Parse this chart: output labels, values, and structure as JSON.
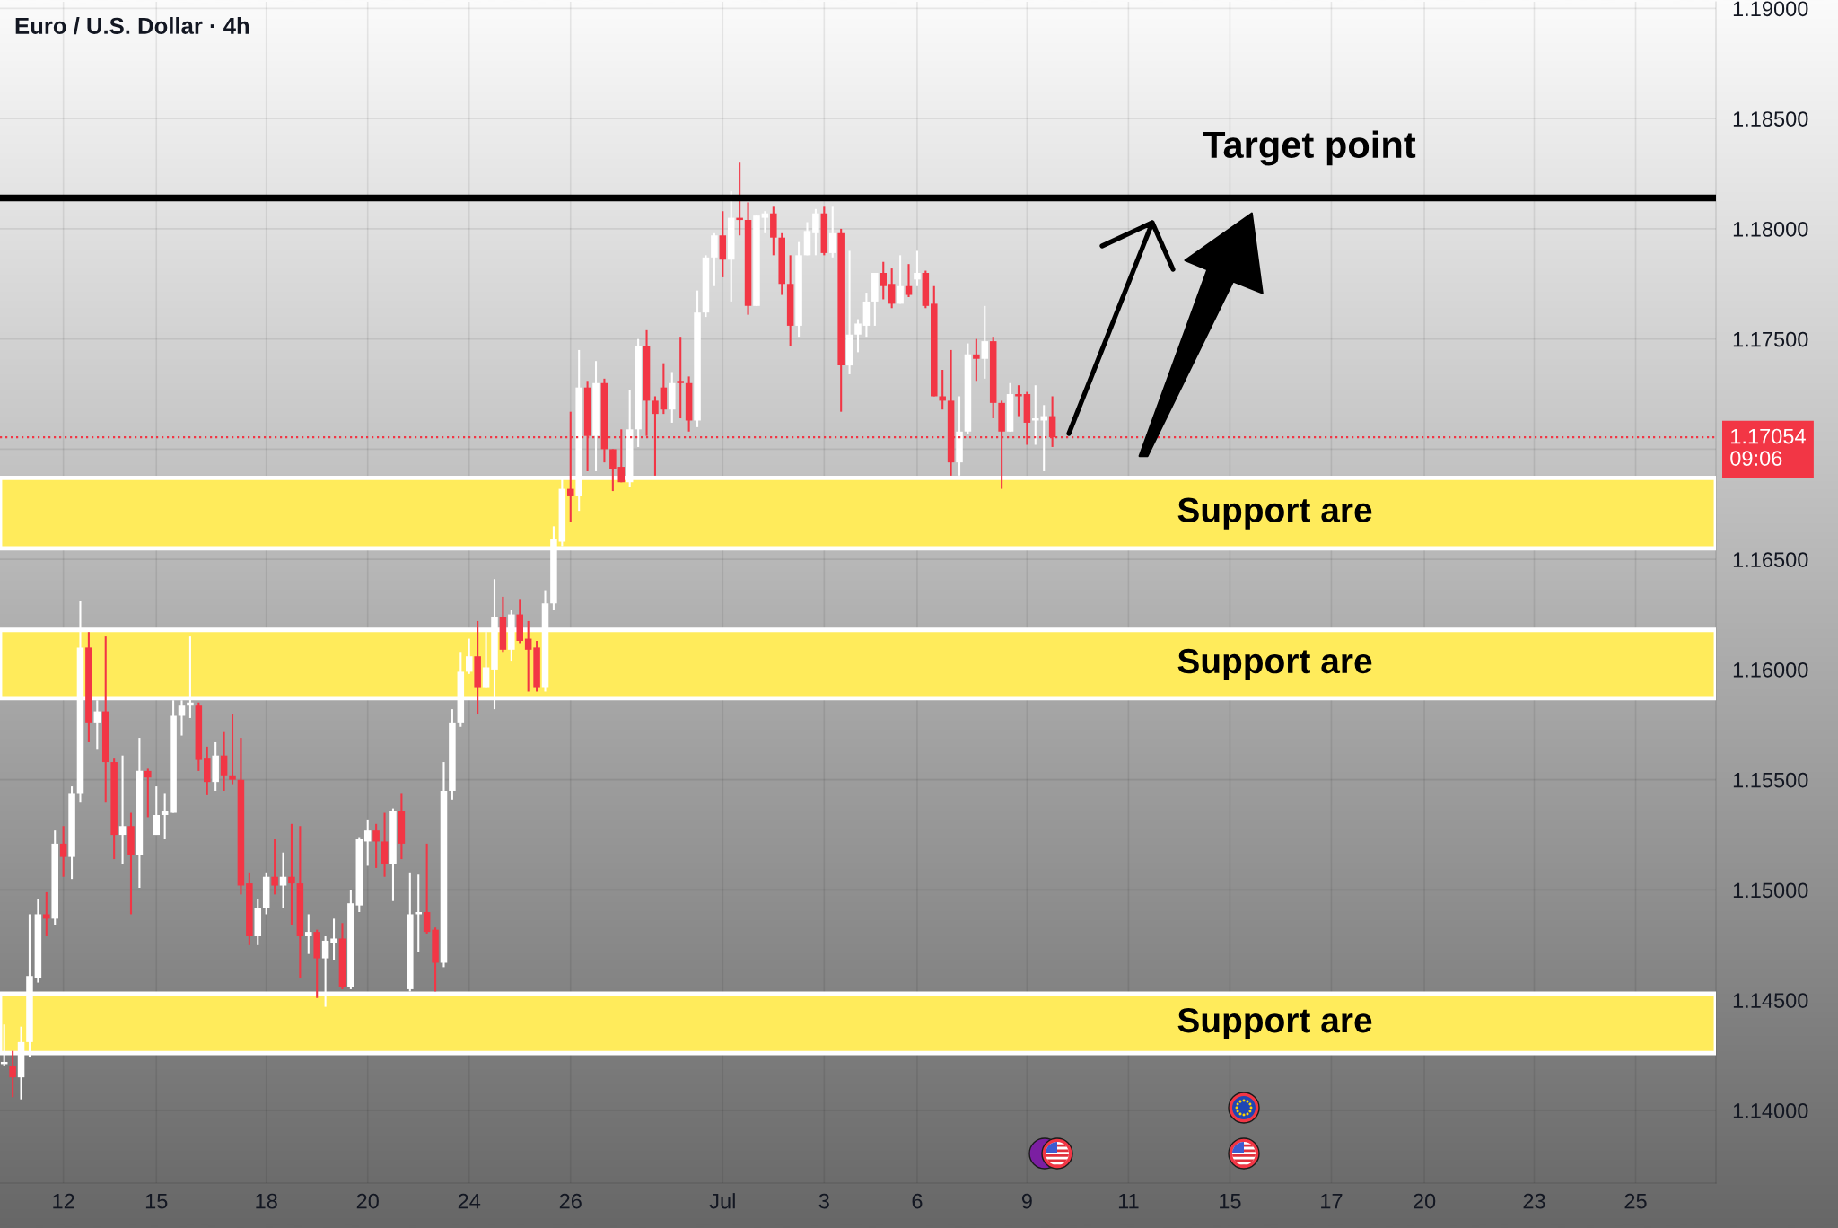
{
  "chart_data": {
    "type": "candlestick",
    "title": "Euro / U.S. Dollar · 4h",
    "categories": [
      null,
      null,
      null,
      null,
      null,
      null,
      null,
      "12",
      null,
      null,
      null,
      null,
      null,
      null,
      null,
      null,
      null,
      null,
      "15",
      null,
      null,
      null,
      null,
      null,
      null,
      null,
      null,
      null,
      null,
      null,
      null,
      "18",
      null,
      null,
      null,
      null,
      null,
      null,
      null,
      null,
      null,
      null,
      null,
      "20",
      null,
      null,
      null,
      null,
      null,
      null,
      null,
      null,
      null,
      null,
      null,
      "24",
      null,
      null,
      null,
      null,
      null,
      null,
      null,
      null,
      null,
      null,
      null,
      "26",
      null,
      null,
      null,
      null,
      null,
      null,
      null,
      null,
      null,
      null,
      null,
      null,
      null,
      null,
      null,
      null,
      null,
      "Jul",
      null,
      null,
      null,
      null,
      null,
      null,
      null,
      null,
      null,
      null,
      null,
      "3",
      null,
      null,
      null,
      null,
      null,
      null,
      null,
      null,
      null,
      null,
      "6",
      null,
      null,
      null,
      null,
      null,
      null,
      null,
      null,
      null,
      null,
      null,
      null,
      "9",
      null,
      null,
      null,
      null,
      null,
      null,
      null,
      null,
      null,
      null,
      null,
      "11",
      null,
      null,
      null,
      null,
      null,
      null,
      null,
      null,
      null,
      null,
      null,
      "15",
      null,
      null,
      null,
      null,
      null,
      null,
      null,
      null,
      null,
      null,
      null,
      "17",
      null,
      null,
      null,
      null,
      null,
      null,
      null,
      null,
      null,
      null,
      "20",
      null,
      null,
      null,
      null,
      null,
      null,
      null,
      null,
      null,
      null,
      null,
      null,
      "23",
      null,
      null,
      null,
      null,
      null,
      null,
      null,
      null,
      null,
      null,
      null,
      "25",
      null,
      null,
      null,
      null,
      null,
      null,
      null,
      null,
      null
    ],
    "ohlc": [
      [
        1.1421,
        1.1439,
        1.142,
        1.1422
      ],
      [
        1.142,
        1.1427,
        1.1406,
        1.1415
      ],
      [
        1.1415,
        1.1438,
        1.1405,
        1.1431
      ],
      [
        1.1431,
        1.1489,
        1.1424,
        1.1461
      ],
      [
        1.146,
        1.1496,
        1.1458,
        1.1489
      ],
      [
        1.1489,
        1.1499,
        1.1479,
        1.1487
      ],
      [
        1.1487,
        1.1527,
        1.1484,
        1.1521
      ],
      [
        1.1521,
        1.1529,
        1.1506,
        1.1515
      ],
      [
        1.1515,
        1.1547,
        1.1505,
        1.1544
      ],
      [
        1.1544,
        1.1631,
        1.154,
        1.161
      ],
      [
        1.161,
        1.1617,
        1.1567,
        1.1576
      ],
      [
        1.1576,
        1.1586,
        1.1564,
        1.1581
      ],
      [
        1.1581,
        1.1615,
        1.154,
        1.1558
      ],
      [
        1.1558,
        1.156,
        1.1514,
        1.1525
      ],
      [
        1.1525,
        1.1561,
        1.1512,
        1.1529
      ],
      [
        1.1529,
        1.1535,
        1.1489,
        1.1516
      ],
      [
        1.1516,
        1.1569,
        1.1501,
        1.1554
      ],
      [
        1.1554,
        1.1555,
        1.1533,
        1.1551
      ],
      [
        1.1525,
        1.1547,
        1.1525,
        1.1534
      ],
      [
        1.1534,
        1.1544,
        1.1523,
        1.1536
      ],
      [
        1.1535,
        1.1586,
        1.1535,
        1.1579
      ],
      [
        1.1579,
        1.1586,
        1.157,
        1.1584
      ],
      [
        1.1584,
        1.1615,
        1.1578,
        1.1585
      ],
      [
        1.1584,
        1.1585,
        1.1554,
        1.1559
      ],
      [
        1.156,
        1.1565,
        1.1543,
        1.1549
      ],
      [
        1.1549,
        1.1567,
        1.1545,
        1.1561
      ],
      [
        1.1561,
        1.1572,
        1.1545,
        1.1552
      ],
      [
        1.1552,
        1.158,
        1.1548,
        1.155
      ],
      [
        1.155,
        1.1569,
        1.1498,
        1.1502
      ],
      [
        1.1503,
        1.1508,
        1.1475,
        1.1479
      ],
      [
        1.1479,
        1.1496,
        1.1475,
        1.1492
      ],
      [
        1.1492,
        1.1508,
        1.1489,
        1.1506
      ],
      [
        1.1506,
        1.1523,
        1.1498,
        1.1502
      ],
      [
        1.1502,
        1.1517,
        1.1492,
        1.1506
      ],
      [
        1.1506,
        1.153,
        1.1484,
        1.1503
      ],
      [
        1.1503,
        1.1529,
        1.146,
        1.1479
      ],
      [
        1.1479,
        1.1489,
        1.1471,
        1.1481
      ],
      [
        1.1481,
        1.1482,
        1.1451,
        1.1469
      ],
      [
        1.1469,
        1.1479,
        1.1447,
        1.1477
      ],
      [
        1.1476,
        1.1487,
        1.1468,
        1.1478
      ],
      [
        1.1478,
        1.1485,
        1.1455,
        1.1456
      ],
      [
        1.1456,
        1.15,
        1.1455,
        1.1494
      ],
      [
        1.1493,
        1.1524,
        1.149,
        1.1523
      ],
      [
        1.1522,
        1.1532,
        1.1511,
        1.1527
      ],
      [
        1.1527,
        1.153,
        1.151,
        1.1522
      ],
      [
        1.1522,
        1.1535,
        1.1506,
        1.1512
      ],
      [
        1.1512,
        1.1537,
        1.1495,
        1.1536
      ],
      [
        1.1536,
        1.1544,
        1.1514,
        1.1521
      ],
      [
        1.1455,
        1.1508,
        1.1454,
        1.1489
      ],
      [
        1.1489,
        1.1507,
        1.1472,
        1.149
      ],
      [
        1.149,
        1.1521,
        1.148,
        1.1481
      ],
      [
        1.1482,
        1.1483,
        1.1454,
        1.1467
      ],
      [
        1.1467,
        1.1558,
        1.1465,
        1.1545
      ],
      [
        1.1545,
        1.1582,
        1.1541,
        1.1576
      ],
      [
        1.1576,
        1.1608,
        1.1574,
        1.1599
      ],
      [
        1.1599,
        1.1614,
        1.1598,
        1.1606
      ],
      [
        1.1606,
        1.1622,
        1.158,
        1.1592
      ],
      [
        1.1592,
        1.1617,
        1.1592,
        1.1601
      ],
      [
        1.16,
        1.1641,
        1.1582,
        1.1624
      ],
      [
        1.1624,
        1.1633,
        1.1608,
        1.1609
      ],
      [
        1.1609,
        1.1627,
        1.1604,
        1.1625
      ],
      [
        1.1625,
        1.1632,
        1.1612,
        1.1613
      ],
      [
        1.1614,
        1.1622,
        1.159,
        1.1609
      ],
      [
        1.161,
        1.1613,
        1.159,
        1.1592
      ],
      [
        1.1592,
        1.1636,
        1.159,
        1.163
      ],
      [
        1.163,
        1.1665,
        1.1627,
        1.1659
      ],
      [
        1.1658,
        1.1687,
        1.1656,
        1.1682
      ],
      [
        1.1682,
        1.1717,
        1.1667,
        1.1679
      ],
      [
        1.1679,
        1.1745,
        1.1672,
        1.1728
      ],
      [
        1.1728,
        1.1731,
        1.169,
        1.1706
      ],
      [
        1.1706,
        1.174,
        1.169,
        1.173
      ],
      [
        1.173,
        1.1732,
        1.1694,
        1.17
      ],
      [
        1.17,
        1.17,
        1.1681,
        1.1691
      ],
      [
        1.1692,
        1.1709,
        1.1685,
        1.1685
      ],
      [
        1.1685,
        1.1727,
        1.1683,
        1.1709
      ],
      [
        1.1709,
        1.175,
        1.1701,
        1.1747
      ],
      [
        1.1747,
        1.1754,
        1.1706,
        1.1722
      ],
      [
        1.1722,
        1.1724,
        1.1688,
        1.1716
      ],
      [
        1.1728,
        1.1739,
        1.1716,
        1.1718
      ],
      [
        1.1718,
        1.1735,
        1.1712,
        1.173
      ],
      [
        1.1731,
        1.1751,
        1.1714,
        1.173
      ],
      [
        1.173,
        1.1733,
        1.1708,
        1.1713
      ],
      [
        1.1713,
        1.1772,
        1.171,
        1.1762
      ],
      [
        1.1762,
        1.1788,
        1.176,
        1.1787
      ],
      [
        1.1787,
        1.1798,
        1.1774,
        1.1797
      ],
      [
        1.1797,
        1.1808,
        1.1778,
        1.1786
      ],
      [
        1.1786,
        1.1817,
        1.1767,
        1.1805
      ],
      [
        1.1805,
        1.183,
        1.1797,
        1.1804
      ],
      [
        1.1804,
        1.1812,
        1.1761,
        1.1765
      ],
      [
        1.1765,
        1.1806,
        1.1765,
        1.1806
      ],
      [
        1.1805,
        1.1808,
        1.1798,
        1.1807
      ],
      [
        1.1807,
        1.181,
        1.1788,
        1.1796
      ],
      [
        1.1796,
        1.1798,
        1.177,
        1.1775
      ],
      [
        1.1775,
        1.1788,
        1.1747,
        1.1756
      ],
      [
        1.1756,
        1.1794,
        1.1751,
        1.1788
      ],
      [
        1.1788,
        1.1803,
        1.1788,
        1.1799
      ],
      [
        1.1798,
        1.1809,
        1.1788,
        1.1807
      ],
      [
        1.1807,
        1.181,
        1.1788,
        1.1789
      ],
      [
        1.1789,
        1.181,
        1.1787,
        1.1798
      ],
      [
        1.1798,
        1.18,
        1.1717,
        1.1738
      ],
      [
        1.1738,
        1.179,
        1.1734,
        1.1752
      ],
      [
        1.1752,
        1.1759,
        1.1744,
        1.1757
      ],
      [
        1.1756,
        1.1771,
        1.1751,
        1.1767
      ],
      [
        1.1767,
        1.178,
        1.1756,
        1.178
      ],
      [
        1.178,
        1.1785,
        1.1768,
        1.1774
      ],
      [
        1.1775,
        1.1782,
        1.1764,
        1.1766
      ],
      [
        1.1766,
        1.1788,
        1.1766,
        1.1774
      ],
      [
        1.1774,
        1.1784,
        1.1769,
        1.177
      ],
      [
        1.1777,
        1.179,
        1.1774,
        1.178
      ],
      [
        1.178,
        1.1781,
        1.1764,
        1.1765
      ],
      [
        1.1766,
        1.1774,
        1.1724,
        1.1724
      ],
      [
        1.1724,
        1.1736,
        1.1718,
        1.1722
      ],
      [
        1.1722,
        1.1745,
        1.1688,
        1.1694
      ],
      [
        1.1694,
        1.1724,
        1.1688,
        1.1708
      ],
      [
        1.1708,
        1.1748,
        1.1707,
        1.1743
      ],
      [
        1.1743,
        1.175,
        1.1731,
        1.1741
      ],
      [
        1.1741,
        1.1765,
        1.1732,
        1.1749
      ],
      [
        1.1749,
        1.1751,
        1.1714,
        1.1721
      ],
      [
        1.1721,
        1.1722,
        1.1682,
        1.1708
      ],
      [
        1.1708,
        1.173,
        1.1708,
        1.1725
      ],
      [
        1.1725,
        1.1729,
        1.1715,
        1.1724
      ],
      [
        1.1725,
        1.1726,
        1.1702,
        1.1712
      ],
      [
        1.1713,
        1.1729,
        1.1702,
        1.1714
      ],
      [
        1.1713,
        1.172,
        1.169,
        1.1715
      ],
      [
        1.1715,
        1.1724,
        1.1701,
        1.17054
      ],
      null,
      null,
      null,
      null,
      null,
      null,
      null,
      null,
      null,
      null,
      null,
      null,
      null,
      null,
      null,
      null,
      null,
      null,
      null,
      null,
      null,
      null,
      null,
      null,
      null,
      null,
      null,
      null,
      null,
      null,
      null,
      null,
      null,
      null,
      null,
      null,
      null,
      null,
      null,
      null,
      null,
      null,
      null,
      null,
      null,
      null,
      null,
      null,
      null,
      null,
      null,
      null,
      null,
      null,
      null,
      null,
      null,
      null,
      null,
      null,
      null,
      null,
      null,
      null,
      null,
      null,
      null,
      null,
      null,
      null,
      null,
      null,
      null,
      null,
      null,
      null,
      null,
      null
    ],
    "colors": [
      "#ffffff",
      "#f23645",
      "#ffffff",
      "#ffffff",
      "#ffffff",
      "#f23645",
      "#ffffff",
      "#f23645",
      "#ffffff",
      "#ffffff",
      "#f23645",
      "#ffffff",
      "#f23645",
      "#f23645",
      "#ffffff",
      "#f23645",
      "#ffffff",
      "#f23645",
      "#ffffff",
      "#ffffff",
      "#ffffff",
      "#ffffff",
      "#ffffff",
      "#f23645",
      "#f23645",
      "#ffffff",
      "#f23645",
      "#f23645",
      "#f23645",
      "#f23645",
      "#ffffff",
      "#ffffff",
      "#f23645",
      "#ffffff",
      "#f23645",
      "#f23645",
      "#ffffff",
      "#f23645",
      "#ffffff",
      "#ffffff",
      "#f23645",
      "#ffffff",
      "#ffffff",
      "#ffffff",
      "#f23645",
      "#f23645",
      "#ffffff",
      "#f23645",
      "#ffffff",
      "#ffffff",
      "#f23645",
      "#f23645",
      "#ffffff",
      "#ffffff",
      "#ffffff",
      "#ffffff",
      "#f23645",
      "#ffffff",
      "#ffffff",
      "#f23645",
      "#ffffff",
      "#f23645",
      "#f23645",
      "#f23645",
      "#ffffff",
      "#ffffff",
      "#ffffff",
      "#f23645",
      "#ffffff",
      "#f23645",
      "#ffffff",
      "#f23645",
      "#f23645",
      "#f23645",
      "#ffffff",
      "#ffffff",
      "#f23645",
      "#f23645",
      "#f23645",
      "#ffffff",
      "#f23645",
      "#f23645",
      "#ffffff",
      "#ffffff",
      "#ffffff",
      "#f23645",
      "#ffffff",
      "#f23645",
      "#f23645",
      "#ffffff",
      "#ffffff",
      "#f23645",
      "#f23645",
      "#f23645",
      "#ffffff",
      "#ffffff",
      "#ffffff",
      "#f23645",
      "#ffffff",
      "#f23645",
      "#ffffff",
      "#ffffff",
      "#ffffff",
      "#ffffff",
      "#f23645",
      "#f23645",
      "#ffffff",
      "#f23645",
      "#ffffff",
      "#f23645",
      "#f23645",
      "#f23645",
      "#f23645",
      "#ffffff",
      "#ffffff",
      "#f23645",
      "#ffffff",
      "#f23645",
      "#f23645",
      "#ffffff",
      "#f23645",
      "#f23645",
      "#ffffff",
      "#ffffff",
      "#f23645",
      null,
      null,
      null,
      null,
      null,
      null,
      null,
      null,
      null,
      null,
      null,
      null,
      null,
      null,
      null,
      null,
      null,
      null,
      null,
      null,
      null,
      null,
      null,
      null,
      null,
      null,
      null,
      null,
      null,
      null,
      null,
      null,
      null,
      null,
      null,
      null,
      null,
      null,
      null,
      null,
      null,
      null,
      null,
      null,
      null,
      null,
      null,
      null,
      null,
      null,
      null,
      null,
      null,
      null,
      null,
      null,
      null,
      null,
      null,
      null,
      null,
      null,
      null,
      null,
      null,
      null,
      null,
      null,
      null,
      null,
      null,
      null,
      null,
      null,
      null,
      null,
      null,
      null
    ],
    "ylim": [
      1.1367,
      1.1903
    ],
    "yticks": [
      {
        "value": 1.14,
        "label": "1.14000"
      },
      {
        "value": 1.145,
        "label": "1.14500"
      },
      {
        "value": 1.15,
        "label": "1.15000"
      },
      {
        "value": 1.155,
        "label": "1.15500"
      },
      {
        "value": 1.16,
        "label": "1.16000"
      },
      {
        "value": 1.165,
        "label": "1.16500"
      },
      {
        "value": 1.17,
        "label": null
      },
      {
        "value": 1.175,
        "label": "1.17500"
      },
      {
        "value": 1.18,
        "label": "1.18000"
      },
      {
        "value": 1.185,
        "label": "1.18500"
      },
      {
        "value": 1.19,
        "label": "1.19000"
      }
    ],
    "grid": true,
    "bands": [
      {
        "axis": "y",
        "from": 1.1655,
        "to": 1.1687,
        "label": "Support are",
        "color": "#ffeb5b"
      },
      {
        "axis": "y",
        "from": 1.1587,
        "to": 1.1618,
        "label": "Support are",
        "color": "#ffeb5b"
      },
      {
        "axis": "y",
        "from": 1.1426,
        "to": 1.1453,
        "label": "Support are",
        "color": "#ffeb5b"
      }
    ],
    "ref_lines": [
      {
        "axis": "y",
        "value": 1.1814,
        "label": "Target point",
        "color": "#000000",
        "line_style": "solid"
      },
      {
        "axis": "y",
        "value": 1.17054,
        "label": "1.17054\n09:06",
        "color": "#f23645",
        "line_style": "dotted"
      }
    ]
  }
}
